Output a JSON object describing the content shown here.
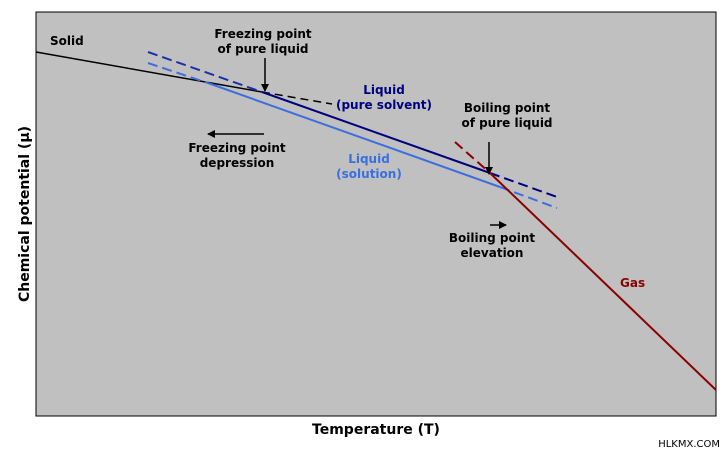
{
  "diagram": {
    "axes": {
      "x_label": "Temperature (T)",
      "y_label": "Chemical potential (μ)"
    },
    "labels": {
      "solid": "Solid",
      "freezing_pure": [
        "Freezing point",
        "of pure liquid"
      ],
      "liquid_pure": [
        "Liquid",
        "(pure solvent)"
      ],
      "boiling_pure": [
        "Boiling point",
        "of pure liquid"
      ],
      "freezing_depression": [
        "Freezing point",
        "depression"
      ],
      "liquid_solution": [
        "Liquid",
        "(solution)"
      ],
      "boiling_elevation": [
        "Boiling point",
        "elevation"
      ],
      "gas": "Gas"
    },
    "credit": "HLKMX.COM"
  }
}
